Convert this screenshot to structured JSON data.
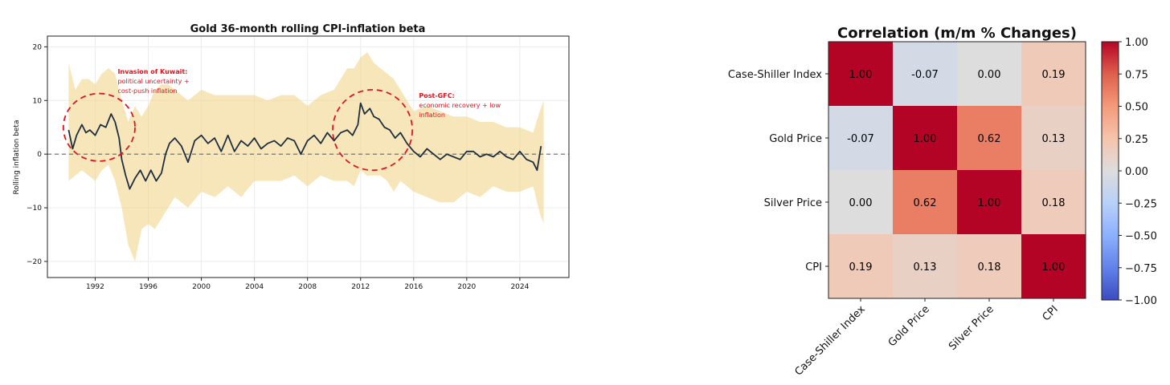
{
  "chart_data": [
    {
      "type": "line",
      "title": "Gold 36-month rolling CPI-inflation beta",
      "xlabel": "",
      "ylabel": "Rolling inflation beta",
      "xlim": [
        1988.4,
        2027.7
      ],
      "ylim": [
        -23,
        22
      ],
      "xticks": [
        1992,
        1996,
        2000,
        2004,
        2008,
        2012,
        2016,
        2020,
        2024
      ],
      "yticks": [
        -20,
        -10,
        0,
        10,
        20
      ],
      "grid": true,
      "reference_line": 0,
      "series": [
        {
          "name": "Rolling inflation beta",
          "color": "#1e2f40",
          "x": [
            1990.0,
            1990.3,
            1990.6,
            1991.0,
            1991.3,
            1991.6,
            1992.0,
            1992.4,
            1992.8,
            1993.2,
            1993.5,
            1993.8,
            1994.0,
            1994.3,
            1994.6,
            1995.0,
            1995.4,
            1995.8,
            1996.2,
            1996.6,
            1997.0,
            1997.3,
            1997.6,
            1998.0,
            1998.5,
            1999.0,
            1999.5,
            2000.0,
            2000.5,
            2001.0,
            2001.5,
            2002.0,
            2002.5,
            2003.0,
            2003.5,
            2004.0,
            2004.5,
            2005.0,
            2005.5,
            2006.0,
            2006.5,
            2007.0,
            2007.5,
            2008.0,
            2008.5,
            2009.0,
            2009.5,
            2010.0,
            2010.5,
            2011.0,
            2011.4,
            2011.8,
            2012.0,
            2012.3,
            2012.7,
            2013.0,
            2013.4,
            2013.8,
            2014.2,
            2014.6,
            2015.0,
            2015.5,
            2016.0,
            2016.5,
            2017.0,
            2017.5,
            2018.0,
            2018.5,
            2019.0,
            2019.5,
            2020.0,
            2020.5,
            2021.0,
            2021.5,
            2022.0,
            2022.5,
            2023.0,
            2023.5,
            2024.0,
            2024.5,
            2025.0,
            2025.3,
            2025.6
          ],
          "values": [
            4.5,
            1.0,
            3.5,
            5.5,
            4.0,
            4.5,
            3.5,
            5.5,
            5.0,
            7.5,
            6.0,
            3.0,
            -1.0,
            -4.0,
            -6.5,
            -4.5,
            -3.0,
            -5.0,
            -3.0,
            -5.0,
            -3.5,
            0.0,
            2.0,
            3.0,
            1.5,
            -1.5,
            2.5,
            3.5,
            2.0,
            3.0,
            0.5,
            3.5,
            0.5,
            2.5,
            1.5,
            3.0,
            1.0,
            2.0,
            2.5,
            1.5,
            3.0,
            2.5,
            0.0,
            2.5,
            3.5,
            2.0,
            4.0,
            2.5,
            4.0,
            4.5,
            3.5,
            5.5,
            9.5,
            7.5,
            8.5,
            7.0,
            6.5,
            5.0,
            4.5,
            3.0,
            4.0,
            2.0,
            0.5,
            -0.5,
            1.0,
            0.0,
            -1.0,
            0.0,
            -0.5,
            -1.0,
            0.5,
            0.5,
            -0.5,
            0.0,
            -0.5,
            0.5,
            -0.5,
            -1.0,
            0.5,
            -1.0,
            -1.5,
            -3.0,
            1.5
          ]
        },
        {
          "name": "Confidence band",
          "color": "#f3d58e",
          "x": [
            1990.0,
            1990.5,
            1991.0,
            1991.5,
            1992.0,
            1992.5,
            1993.0,
            1993.5,
            1994.0,
            1994.5,
            1995.0,
            1995.5,
            1996.0,
            1996.5,
            1997.0,
            1997.5,
            1998.0,
            1999.0,
            2000.0,
            2001.0,
            2002.0,
            2003.0,
            2004.0,
            2005.0,
            2006.0,
            2007.0,
            2008.0,
            2009.0,
            2010.0,
            2011.0,
            2011.5,
            2012.0,
            2012.5,
            2013.0,
            2013.5,
            2014.0,
            2014.5,
            2015.0,
            2016.0,
            2017.0,
            2018.0,
            2019.0,
            2020.0,
            2021.0,
            2022.0,
            2023.0,
            2024.0,
            2025.0,
            2025.5,
            2025.8
          ],
          "upper": [
            17,
            12,
            14,
            14,
            13,
            15,
            16,
            15,
            10,
            6,
            9,
            7,
            9,
            12,
            13,
            13,
            12,
            10,
            12,
            11,
            11,
            11,
            11,
            10,
            11,
            11,
            9,
            11,
            12,
            16,
            16,
            18,
            19,
            17,
            16,
            15,
            14,
            12,
            8,
            9,
            8,
            7,
            7,
            6,
            6,
            5,
            5,
            4,
            8,
            10
          ],
          "lower": [
            -5,
            -4,
            -3,
            -4,
            -5,
            -3,
            -2,
            -5,
            -10,
            -17,
            -20,
            -14,
            -13,
            -14,
            -12,
            -10,
            -8,
            -10,
            -7,
            -8,
            -6,
            -8,
            -5,
            -5,
            -5,
            -4,
            -6,
            -4,
            -5,
            -5,
            -6,
            -3,
            -4,
            -4,
            -4,
            -5,
            -7,
            -5,
            -7,
            -8,
            -9,
            -9,
            -7,
            -8,
            -6,
            -7,
            -7,
            -6,
            -11,
            -13
          ]
        }
      ],
      "annotations": [
        {
          "title": "Invasion of Kuwait:",
          "lines": [
            "political uncertainty +",
            "cost-push inflation"
          ],
          "center_x": 1992.3,
          "center_y": 5,
          "radius_x": 2.7,
          "radius_y": 6.3,
          "text_x": 1993.7,
          "text_y": 15
        },
        {
          "title": "Post-GFC:",
          "lines": [
            "economic recovery + low",
            "inflation"
          ],
          "center_x": 2012.9,
          "center_y": 4.5,
          "radius_x": 3.0,
          "radius_y": 7.5,
          "text_x": 2016.4,
          "text_y": 10.5
        }
      ]
    },
    {
      "type": "heatmap",
      "title": "Correlation (m/m % Changes)",
      "labels": [
        "Case-Shiller Index",
        "Gold Price",
        "Silver Price",
        "CPI"
      ],
      "matrix": [
        [
          1.0,
          -0.07,
          0.0,
          0.19
        ],
        [
          -0.07,
          1.0,
          0.62,
          0.13
        ],
        [
          0.0,
          0.62,
          1.0,
          0.18
        ],
        [
          0.19,
          0.13,
          0.18,
          1.0
        ]
      ],
      "colormap": "coolwarm",
      "vmin": -1.0,
      "vmax": 1.0,
      "colorbar_ticks": [
        1.0,
        0.75,
        0.5,
        0.25,
        0.0,
        -0.25,
        -0.5,
        -0.75,
        -1.0
      ]
    }
  ]
}
